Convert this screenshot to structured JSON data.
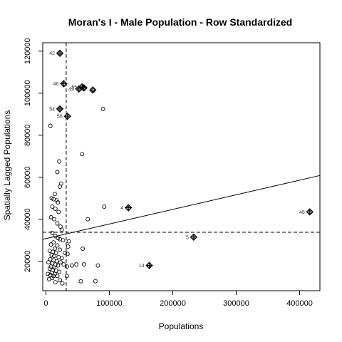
{
  "chart_data": {
    "type": "scatter",
    "title": "Moran's I - Male Population - Row Standardized",
    "xlabel": "Populations",
    "ylabel": "Spatially Lagged Populations",
    "xlim": [
      -5000,
      432000
    ],
    "ylim": [
      6000,
      124000
    ],
    "xticks": [
      0,
      100000,
      200000,
      300000,
      400000
    ],
    "yticks": [
      20000,
      40000,
      60000,
      80000,
      100000,
      120000
    ],
    "xtick_labels": [
      "0",
      "100000",
      "200000",
      "300000",
      "400000"
    ],
    "ytick_labels": [
      "20000",
      "40000",
      "60000",
      "80000",
      "100000",
      "120000"
    ],
    "grid": false,
    "mean_x": 32000,
    "mean_y": 33800,
    "regression_line": {
      "intercept": 30800,
      "slope": 0.0695
    },
    "influential_points": [
      {
        "label": "42",
        "x": 22000,
        "y": 119000
      },
      {
        "label": "46",
        "x": 28000,
        "y": 104500
      },
      {
        "label": "49",
        "x": 52000,
        "y": 102000
      },
      {
        "label": "55",
        "x": 57000,
        "y": 103000
      },
      {
        "label": "",
        "x": 60000,
        "y": 102500
      },
      {
        "label": "",
        "x": 74000,
        "y": 101500
      },
      {
        "label": "54",
        "x": 22000,
        "y": 92500
      },
      {
        "label": "56",
        "x": 34000,
        "y": 89000
      },
      {
        "label": "4",
        "x": 130000,
        "y": 45500
      },
      {
        "label": "5",
        "x": 233000,
        "y": 31500
      },
      {
        "label": "14",
        "x": 163000,
        "y": 18000
      },
      {
        "label": "48",
        "x": 416000,
        "y": 43500
      }
    ],
    "points": [
      [
        7000,
        84500
      ],
      [
        90000,
        92500
      ],
      [
        57000,
        71000
      ],
      [
        21000,
        67500
      ],
      [
        18000,
        62500
      ],
      [
        24000,
        57000
      ],
      [
        22000,
        55500
      ],
      [
        14000,
        52000
      ],
      [
        9000,
        50000
      ],
      [
        12000,
        49500
      ],
      [
        17000,
        49000
      ],
      [
        19000,
        48000
      ],
      [
        10000,
        46000
      ],
      [
        15000,
        45000
      ],
      [
        20000,
        43500
      ],
      [
        8000,
        41000
      ],
      [
        13000,
        40000
      ],
      [
        66000,
        40000
      ],
      [
        92000,
        46000
      ],
      [
        18000,
        38000
      ],
      [
        23000,
        36500
      ],
      [
        25000,
        35000
      ],
      [
        10000,
        33500
      ],
      [
        15000,
        32000
      ],
      [
        19000,
        31000
      ],
      [
        22000,
        30500
      ],
      [
        27000,
        30000
      ],
      [
        36000,
        29500
      ],
      [
        12000,
        29000
      ],
      [
        8000,
        28000
      ],
      [
        18000,
        27500
      ],
      [
        35000,
        27000
      ],
      [
        14000,
        26000
      ],
      [
        58000,
        26000
      ],
      [
        22000,
        25500
      ],
      [
        6000,
        25000
      ],
      [
        11000,
        24500
      ],
      [
        16000,
        24000
      ],
      [
        30000,
        24000
      ],
      [
        34000,
        23500
      ],
      [
        9000,
        23000
      ],
      [
        13000,
        22500
      ],
      [
        20000,
        22000
      ],
      [
        25000,
        21500
      ],
      [
        7000,
        21000
      ],
      [
        12000,
        20500
      ],
      [
        17000,
        20000
      ],
      [
        23000,
        19500
      ],
      [
        4000,
        19500
      ],
      [
        10000,
        19000
      ],
      [
        15000,
        18500
      ],
      [
        19000,
        18000
      ],
      [
        28000,
        18500
      ],
      [
        8000,
        17500
      ],
      [
        13000,
        17000
      ],
      [
        33000,
        17500
      ],
      [
        41000,
        18000
      ],
      [
        48000,
        18500
      ],
      [
        60000,
        18500
      ],
      [
        82000,
        18000
      ],
      [
        6000,
        16500
      ],
      [
        11000,
        16000
      ],
      [
        16000,
        15500
      ],
      [
        21000,
        15000
      ],
      [
        9000,
        14500
      ],
      [
        14000,
        14000
      ],
      [
        3000,
        14000
      ],
      [
        7000,
        13500
      ],
      [
        12000,
        13000
      ],
      [
        18000,
        13000
      ],
      [
        33000,
        13000
      ],
      [
        10000,
        12000
      ],
      [
        5000,
        11500
      ],
      [
        22000,
        11000
      ],
      [
        55000,
        10500
      ],
      [
        78000,
        10500
      ],
      [
        15000,
        10000
      ],
      [
        26000,
        9500
      ]
    ]
  }
}
